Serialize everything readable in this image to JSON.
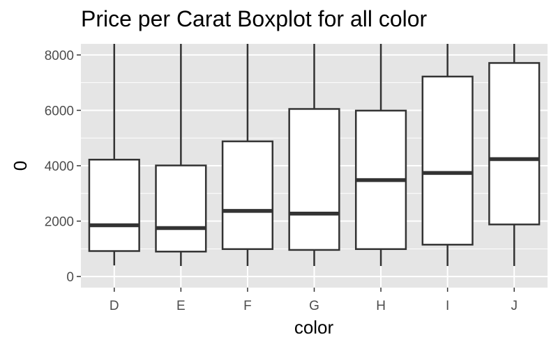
{
  "chart_data": {
    "type": "boxplot",
    "title": "Price per Carat Boxplot for all color",
    "xlabel": "color",
    "ylabel": "0",
    "ylim": [
      -400,
      8400
    ],
    "yticks": [
      0,
      2000,
      4000,
      6000,
      8000
    ],
    "categories": [
      "D",
      "E",
      "F",
      "G",
      "H",
      "I",
      "J"
    ],
    "boxes": [
      {
        "category": "D",
        "whisker_low": 400,
        "q1": 920,
        "median": 1850,
        "q3": 4220,
        "whisker_high": 8400
      },
      {
        "category": "E",
        "whisker_low": 380,
        "q1": 900,
        "median": 1750,
        "q3": 4010,
        "whisker_high": 8400
      },
      {
        "category": "F",
        "whisker_low": 380,
        "q1": 990,
        "median": 2370,
        "q3": 4880,
        "whisker_high": 8400
      },
      {
        "category": "G",
        "whisker_low": 380,
        "q1": 960,
        "median": 2270,
        "q3": 6050,
        "whisker_high": 8400
      },
      {
        "category": "H",
        "whisker_low": 380,
        "q1": 990,
        "median": 3480,
        "q3": 5990,
        "whisker_high": 8400
      },
      {
        "category": "I",
        "whisker_low": 380,
        "q1": 1150,
        "median": 3740,
        "q3": 7220,
        "whisker_high": 8400
      },
      {
        "category": "J",
        "whisker_low": 380,
        "q1": 1880,
        "median": 4240,
        "q3": 7710,
        "whisker_high": 8400
      }
    ],
    "grid": true,
    "legend": "none",
    "colors": {
      "panel": "#e5e5e5",
      "grid": "#ffffff",
      "box_fill": "#ffffff",
      "box_line": "#333333",
      "tick_text": "#4d4d4d"
    }
  }
}
